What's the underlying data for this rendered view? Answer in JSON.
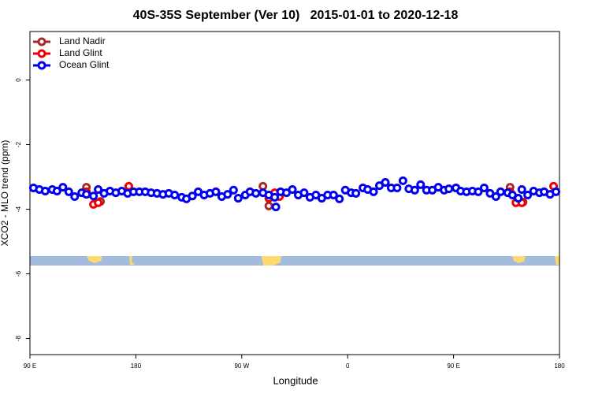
{
  "chart_data": {
    "type": "scatter",
    "title": "40S-35S September (Ver 10)   2015-01-01 to 2020-12-18",
    "x_label": "Longitude",
    "y_label": "XCO2 - MLO trend (ppm)",
    "xlim": [
      90,
      540
    ],
    "ylim": [
      -8.5,
      1.5
    ],
    "xticks": [
      {
        "value": 90,
        "label": "90 E"
      },
      {
        "value": 180,
        "label": "180"
      },
      {
        "value": 270,
        "label": "90 W"
      },
      {
        "value": 360,
        "label": "0"
      },
      {
        "value": 450,
        "label": "90 E"
      },
      {
        "value": 540,
        "label": "180"
      }
    ],
    "yticks": [
      0,
      -2,
      -4,
      -6,
      -8
    ],
    "legend": "top-left",
    "series": [
      {
        "name": "Land Nadir",
        "color": "#a52a2a",
        "x": [
          138,
          150,
          288,
          293,
          301,
          498,
          509
        ],
        "values": [
          -3.32,
          -3.76,
          -3.29,
          -3.9,
          -3.59,
          -3.32,
          -3.78
        ]
      },
      {
        "name": "Land Glint",
        "color": "#ee0000",
        "x": [
          138,
          144,
          148,
          174,
          293,
          298,
          302,
          498,
          503,
          508,
          535
        ],
        "values": [
          -3.46,
          -3.85,
          -3.8,
          -3.29,
          -3.66,
          -3.49,
          -3.61,
          -3.46,
          -3.8,
          -3.8,
          -3.29
        ]
      },
      {
        "name": "Ocean Glint",
        "color": "#0000ee",
        "x": [
          93,
          98,
          103,
          109,
          113,
          118,
          123,
          128,
          134,
          138,
          144,
          148,
          153,
          158,
          163,
          168,
          173,
          178,
          183,
          188,
          193,
          198,
          203,
          208,
          213,
          219,
          223,
          228,
          233,
          238,
          243,
          248,
          253,
          258,
          263,
          267,
          273,
          277,
          282,
          288,
          293,
          298,
          299,
          303,
          308,
          313,
          318,
          323,
          328,
          333,
          338,
          343,
          348,
          353,
          358,
          363,
          367,
          373,
          377,
          382,
          387,
          392,
          397,
          402,
          407,
          412,
          417,
          422,
          427,
          432,
          437,
          442,
          446,
          452,
          456,
          461,
          466,
          471,
          476,
          481,
          486,
          490,
          496,
          500,
          505,
          508,
          513,
          518,
          523,
          527,
          532,
          537
        ],
        "values": [
          -3.34,
          -3.39,
          -3.44,
          -3.39,
          -3.44,
          -3.32,
          -3.46,
          -3.61,
          -3.49,
          -3.54,
          -3.59,
          -3.39,
          -3.51,
          -3.44,
          -3.49,
          -3.44,
          -3.51,
          -3.46,
          -3.46,
          -3.46,
          -3.49,
          -3.51,
          -3.54,
          -3.51,
          -3.56,
          -3.63,
          -3.68,
          -3.59,
          -3.46,
          -3.56,
          -3.51,
          -3.46,
          -3.61,
          -3.54,
          -3.41,
          -3.66,
          -3.56,
          -3.46,
          -3.51,
          -3.49,
          -3.56,
          -3.63,
          -3.93,
          -3.46,
          -3.49,
          -3.39,
          -3.56,
          -3.49,
          -3.63,
          -3.56,
          -3.66,
          -3.56,
          -3.56,
          -3.68,
          -3.41,
          -3.49,
          -3.51,
          -3.34,
          -3.39,
          -3.46,
          -3.27,
          -3.17,
          -3.34,
          -3.34,
          -3.12,
          -3.37,
          -3.41,
          -3.24,
          -3.41,
          -3.41,
          -3.32,
          -3.41,
          -3.37,
          -3.34,
          -3.44,
          -3.46,
          -3.44,
          -3.46,
          -3.34,
          -3.51,
          -3.61,
          -3.46,
          -3.49,
          -3.56,
          -3.66,
          -3.39,
          -3.56,
          -3.44,
          -3.49,
          -3.46,
          -3.54,
          -3.46
        ]
      }
    ]
  }
}
